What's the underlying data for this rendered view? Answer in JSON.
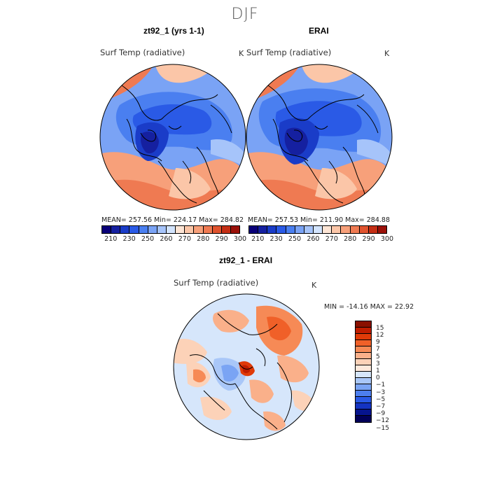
{
  "figure": {
    "title": "DJF"
  },
  "panels": {
    "model": {
      "title": "zt92_1 (yrs 1-1)",
      "variable": "Surf Temp (radiative)",
      "units": "K",
      "stats": "MEAN= 257.56   Min= 224.17   Max= 284.82"
    },
    "obs": {
      "title": "ERAI",
      "variable": "Surf Temp (radiative)",
      "units": "K",
      "stats": "MEAN= 257.53   Min= 211.90   Max= 284.88"
    },
    "diff": {
      "title": "zt92_1 - ERAI",
      "variable": "Surf Temp (radiative)",
      "units": "K",
      "stats": "MIN = -14.16  MAX =  22.92"
    }
  },
  "colorbar_abs": {
    "colors": [
      "#0a0078",
      "#1520a0",
      "#1a3cc8",
      "#2a5ae6",
      "#4a7ff0",
      "#7aa3f5",
      "#a6c4fa",
      "#d3e4fd",
      "#fde5d5",
      "#fbc6a8",
      "#f7a07a",
      "#ef7a52",
      "#e0532e",
      "#c42e14",
      "#9a1008"
    ],
    "tick_labels": [
      "210",
      "230",
      "250",
      "260",
      "270",
      "280",
      "290",
      "300"
    ]
  },
  "colorbar_diff": {
    "colors": [
      "#8a1000",
      "#c01d00",
      "#e03a08",
      "#f06028",
      "#f68a56",
      "#fab08a",
      "#fcd2b8",
      "#fde9dc",
      "#d6e6fb",
      "#a9c7f8",
      "#7aa4f4",
      "#4d7fee",
      "#2a5ae6",
      "#1434c2",
      "#06148e",
      "#010058"
    ],
    "tick_labels": [
      "15",
      "12",
      "9",
      "7",
      "5",
      "3",
      "1",
      "0",
      "−1",
      "−3",
      "−5",
      "−7",
      "−9",
      "−12",
      "−15"
    ]
  }
}
